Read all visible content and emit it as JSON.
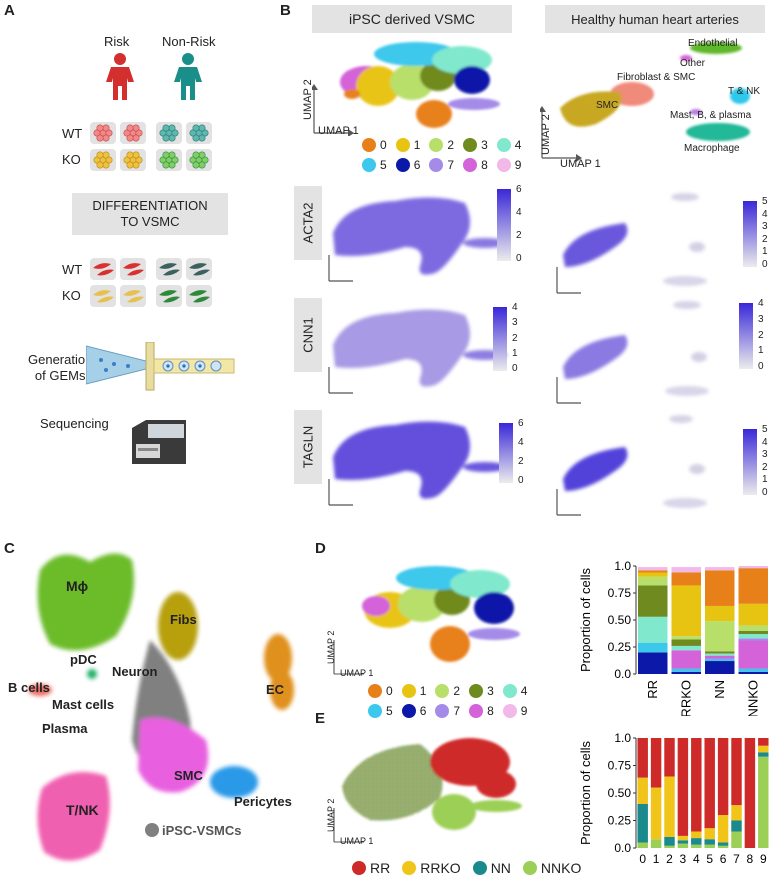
{
  "panels": {
    "A": "A",
    "B": "B",
    "C": "C",
    "D": "D",
    "E": "E"
  },
  "panelA": {
    "risk": "Risk",
    "nonrisk": "Non-Risk",
    "wt": "WT",
    "ko": "KO",
    "diff_line1": "DIFFERENTIATION",
    "diff_line2": "TO VSMC",
    "gems_line1": "Generation",
    "gems_line2": "of GEMs",
    "sequencing": "Sequencing",
    "colors": {
      "risk": "#d32f2f",
      "nonrisk": "#1a8f8a"
    }
  },
  "panelB": {
    "header_left": "iPSC derived VSMC",
    "header_right": "Healthy human heart arteries",
    "umap1": "UMAP 1",
    "umap2": "UMAP 2",
    "cell_types": {
      "endothelial": "Endothelial",
      "other": "Other",
      "fib_smc": "Fibroblast & SMC",
      "smc": "SMC",
      "tnk": "T & NK",
      "mast": "Mast, B, & plasma",
      "macrophage": "Macrophage"
    },
    "genes": [
      {
        "name": "ACTA2",
        "left_scale": [
          "6",
          "4",
          "2",
          "0"
        ],
        "right_scale": [
          "5",
          "4",
          "3",
          "2",
          "1",
          "0"
        ]
      },
      {
        "name": "CNN1",
        "left_scale": [
          "4",
          "3",
          "2",
          "1",
          "0"
        ],
        "right_scale": [
          "4",
          "3",
          "2",
          "1",
          "0"
        ]
      },
      {
        "name": "TAGLN",
        "left_scale": [
          "6",
          "4",
          "2",
          "0"
        ],
        "right_scale": [
          "5",
          "4",
          "3",
          "2",
          "1",
          "0"
        ]
      }
    ]
  },
  "clusters": [
    {
      "id": "0",
      "color": "#e8801a"
    },
    {
      "id": "1",
      "color": "#e8c412"
    },
    {
      "id": "2",
      "color": "#b8df6a"
    },
    {
      "id": "3",
      "color": "#6f8a1e"
    },
    {
      "id": "4",
      "color": "#80e8cc"
    },
    {
      "id": "5",
      "color": "#3cc8ec"
    },
    {
      "id": "6",
      "color": "#0b18a8"
    },
    {
      "id": "7",
      "color": "#a58be8"
    },
    {
      "id": "8",
      "color": "#d462d8"
    },
    {
      "id": "9",
      "color": "#f2b8e8"
    }
  ],
  "panelC": {
    "labels": {
      "mphi": "Mϕ",
      "fibs": "Fibs",
      "pdc": "pDC",
      "neuron": "Neuron",
      "ec": "EC",
      "bcells": "B cells",
      "mast": "Mast cells",
      "plasma": "Plasma",
      "smc": "SMC",
      "pericytes": "Pericytes",
      "tnk": "T/NK",
      "ipsc": "iPSC-VSMCs"
    }
  },
  "panelD": {
    "umap1": "UMAP 1",
    "umap2": "UMAP 2"
  },
  "panelE": {
    "umap1": "UMAP 1",
    "umap2": "UMAP 2",
    "groups": [
      {
        "name": "RR",
        "color": "#cf2a2a"
      },
      {
        "name": "RRKO",
        "color": "#f0c419"
      },
      {
        "name": "NN",
        "color": "#1b8a8c"
      },
      {
        "name": "NNKO",
        "color": "#9ccf56"
      }
    ]
  },
  "chart_data": [
    {
      "type": "bar",
      "stacked": true,
      "title": "",
      "xlabel": "",
      "ylabel": "Proportion of cells",
      "ylim": [
        0,
        1
      ],
      "yticks": [
        "0.0",
        "0.25",
        "0.50",
        "0.75",
        "1.0"
      ],
      "categories": [
        "RR",
        "RRKO",
        "NN",
        "NNKO"
      ],
      "series": [
        {
          "name": "6",
          "values": [
            0.2,
            0.02,
            0.12,
            0.02
          ]
        },
        {
          "name": "5",
          "values": [
            0.09,
            0.03,
            0.02,
            0.03
          ]
        },
        {
          "name": "8",
          "values": [
            0.0,
            0.17,
            0.03,
            0.26
          ]
        },
        {
          "name": "7",
          "values": [
            0.0,
            0.0,
            0.0,
            0.02
          ]
        },
        {
          "name": "4",
          "values": [
            0.24,
            0.04,
            0.02,
            0.04
          ]
        },
        {
          "name": "3",
          "values": [
            0.29,
            0.06,
            0.02,
            0.03
          ]
        },
        {
          "name": "2",
          "values": [
            0.08,
            0.03,
            0.28,
            0.05
          ]
        },
        {
          "name": "1",
          "values": [
            0.04,
            0.47,
            0.14,
            0.2
          ]
        },
        {
          "name": "0",
          "values": [
            0.02,
            0.12,
            0.33,
            0.33
          ]
        },
        {
          "name": "9",
          "values": [
            0.03,
            0.05,
            0.03,
            0.02
          ]
        }
      ]
    },
    {
      "type": "bar",
      "stacked": true,
      "title": "",
      "xlabel": "",
      "ylabel": "Proportion of cells",
      "ylim": [
        0,
        1
      ],
      "yticks": [
        "0.0",
        "0.25",
        "0.50",
        "0.75",
        "1.0"
      ],
      "categories": [
        "0",
        "1",
        "2",
        "3",
        "4",
        "5",
        "6",
        "7",
        "8",
        "9"
      ],
      "series": [
        {
          "name": "NNKO",
          "values": [
            0.05,
            0.08,
            0.02,
            0.04,
            0.03,
            0.03,
            0.02,
            0.15,
            0.0,
            0.83
          ]
        },
        {
          "name": "NN",
          "values": [
            0.35,
            0.0,
            0.08,
            0.03,
            0.06,
            0.05,
            0.03,
            0.1,
            0.0,
            0.04
          ]
        },
        {
          "name": "RRKO",
          "values": [
            0.24,
            0.47,
            0.55,
            0.04,
            0.06,
            0.1,
            0.25,
            0.14,
            0.0,
            0.06
          ]
        },
        {
          "name": "RR",
          "values": [
            0.36,
            0.45,
            0.35,
            0.89,
            0.85,
            0.82,
            0.7,
            0.61,
            1.0,
            0.07
          ]
        }
      ]
    }
  ]
}
